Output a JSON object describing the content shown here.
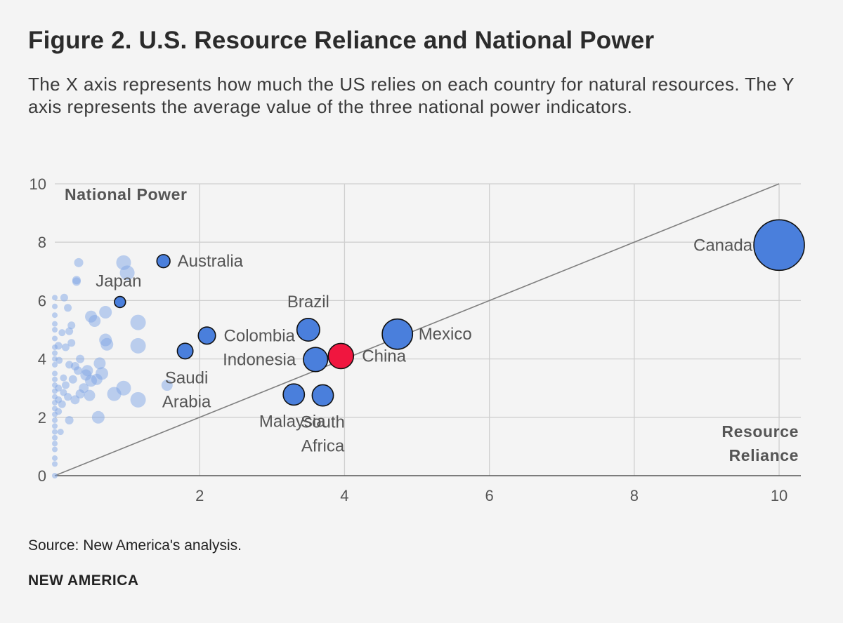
{
  "header": {
    "title": "Figure 2. U.S. Resource Reliance and National Power",
    "subtitle": "The X axis represents how much the US relies on each country for natural resources. The Y axis represents the average value of the three national power indicators."
  },
  "footer": {
    "source_label": "Source:",
    "source_text": " New America's analysis.",
    "brand": "NEW AMERICA"
  },
  "colors": {
    "background": "#f4f4f4",
    "highlight": "#4a7fdc",
    "china": "#f0163f",
    "background_bubbles": "#7fa6e6",
    "grid": "#cfcfcf",
    "diagonal": "#808080"
  },
  "chart_data": {
    "type": "scatter",
    "title": "Figure 2. U.S. Resource Reliance and National Power",
    "xlabel": "Resource Reliance",
    "ylabel": "National Power",
    "xlim": [
      0,
      10.3
    ],
    "ylim": [
      0,
      10
    ],
    "xticks": [
      2,
      4,
      6,
      8,
      10
    ],
    "yticks": [
      0,
      2,
      4,
      6,
      8,
      10
    ],
    "grid": true,
    "reference_line": {
      "from": [
        0,
        0
      ],
      "to": [
        10,
        10
      ]
    },
    "highlighted_points": [
      {
        "label": "Canada",
        "x": 10.0,
        "y": 7.9,
        "size": 10,
        "color": "blue"
      },
      {
        "label": "Mexico",
        "x": 4.73,
        "y": 4.85,
        "size": 6,
        "color": "blue"
      },
      {
        "label": "China",
        "x": 3.95,
        "y": 4.1,
        "size": 5,
        "color": "red"
      },
      {
        "label": "Brazil",
        "x": 3.5,
        "y": 5.0,
        "size": 4.5,
        "color": "blue"
      },
      {
        "label": "Indonesia",
        "x": 3.6,
        "y": 3.98,
        "size": 4.8,
        "color": "blue"
      },
      {
        "label": "Malaysia",
        "x": 3.3,
        "y": 2.78,
        "size": 4.2,
        "color": "blue"
      },
      {
        "label": "South Africa",
        "x": 3.7,
        "y": 2.75,
        "size": 4.2,
        "color": "blue"
      },
      {
        "label": "Colombia",
        "x": 2.1,
        "y": 4.8,
        "size": 3.4,
        "color": "blue"
      },
      {
        "label": "Saudi Arabia",
        "x": 1.8,
        "y": 4.27,
        "size": 3.1,
        "color": "blue"
      },
      {
        "label": "Australia",
        "x": 1.5,
        "y": 7.35,
        "size": 2.6,
        "color": "blue"
      },
      {
        "label": "Japan",
        "x": 0.9,
        "y": 5.95,
        "size": 2.2,
        "color": "blue"
      }
    ],
    "background_points": [
      {
        "x": 0.0,
        "y": 0.0,
        "size": 1
      },
      {
        "x": 0.0,
        "y": 0.4,
        "size": 1
      },
      {
        "x": 0.0,
        "y": 0.6,
        "size": 1
      },
      {
        "x": 0.0,
        "y": 0.9,
        "size": 1
      },
      {
        "x": 0.0,
        "y": 1.1,
        "size": 1
      },
      {
        "x": 0.0,
        "y": 1.3,
        "size": 1
      },
      {
        "x": 0.0,
        "y": 1.5,
        "size": 1
      },
      {
        "x": 0.0,
        "y": 1.7,
        "size": 1
      },
      {
        "x": 0.0,
        "y": 1.9,
        "size": 1
      },
      {
        "x": 0.0,
        "y": 2.1,
        "size": 1
      },
      {
        "x": 0.0,
        "y": 2.3,
        "size": 1
      },
      {
        "x": 0.0,
        "y": 2.5,
        "size": 1
      },
      {
        "x": 0.0,
        "y": 2.7,
        "size": 1
      },
      {
        "x": 0.0,
        "y": 2.9,
        "size": 1
      },
      {
        "x": 0.0,
        "y": 3.1,
        "size": 1
      },
      {
        "x": 0.0,
        "y": 3.3,
        "size": 1
      },
      {
        "x": 0.0,
        "y": 3.5,
        "size": 1
      },
      {
        "x": 0.0,
        "y": 3.8,
        "size": 1
      },
      {
        "x": 0.0,
        "y": 4.0,
        "size": 1
      },
      {
        "x": 0.0,
        "y": 4.2,
        "size": 1
      },
      {
        "x": 0.0,
        "y": 4.4,
        "size": 1
      },
      {
        "x": 0.0,
        "y": 4.7,
        "size": 1
      },
      {
        "x": 0.0,
        "y": 5.0,
        "size": 1
      },
      {
        "x": 0.0,
        "y": 5.2,
        "size": 1
      },
      {
        "x": 0.0,
        "y": 5.5,
        "size": 1
      },
      {
        "x": 0.0,
        "y": 5.8,
        "size": 1
      },
      {
        "x": 0.0,
        "y": 6.1,
        "size": 1
      },
      {
        "x": 0.05,
        "y": 2.2,
        "size": 1.2
      },
      {
        "x": 0.05,
        "y": 2.6,
        "size": 1.2
      },
      {
        "x": 0.05,
        "y": 3.0,
        "size": 1.2
      },
      {
        "x": 0.05,
        "y": 4.45,
        "size": 1.3
      },
      {
        "x": 0.06,
        "y": 3.95,
        "size": 1.2
      },
      {
        "x": 0.08,
        "y": 1.5,
        "size": 1.1
      },
      {
        "x": 0.1,
        "y": 2.45,
        "size": 1.3
      },
      {
        "x": 0.1,
        "y": 4.9,
        "size": 1.2
      },
      {
        "x": 0.12,
        "y": 2.85,
        "size": 1.2
      },
      {
        "x": 0.12,
        "y": 3.35,
        "size": 1.2
      },
      {
        "x": 0.13,
        "y": 6.1,
        "size": 1.3
      },
      {
        "x": 0.15,
        "y": 4.4,
        "size": 1.3
      },
      {
        "x": 0.15,
        "y": 3.1,
        "size": 1.3
      },
      {
        "x": 0.18,
        "y": 5.75,
        "size": 1.3
      },
      {
        "x": 0.18,
        "y": 2.7,
        "size": 1.3
      },
      {
        "x": 0.2,
        "y": 1.9,
        "size": 1.4
      },
      {
        "x": 0.2,
        "y": 3.8,
        "size": 1.3
      },
      {
        "x": 0.2,
        "y": 4.95,
        "size": 1.3
      },
      {
        "x": 0.23,
        "y": 5.15,
        "size": 1.3
      },
      {
        "x": 0.23,
        "y": 4.55,
        "size": 1.3
      },
      {
        "x": 0.25,
        "y": 3.3,
        "size": 1.4
      },
      {
        "x": 0.28,
        "y": 2.6,
        "size": 1.5
      },
      {
        "x": 0.28,
        "y": 3.75,
        "size": 1.4
      },
      {
        "x": 0.3,
        "y": 6.7,
        "size": 1.4
      },
      {
        "x": 0.3,
        "y": 6.65,
        "size": 1.4
      },
      {
        "x": 0.32,
        "y": 3.6,
        "size": 1.4
      },
      {
        "x": 0.33,
        "y": 7.3,
        "size": 1.5
      },
      {
        "x": 0.35,
        "y": 2.8,
        "size": 1.5
      },
      {
        "x": 0.35,
        "y": 4.0,
        "size": 1.4
      },
      {
        "x": 0.4,
        "y": 3.0,
        "size": 1.6
      },
      {
        "x": 0.43,
        "y": 3.45,
        "size": 1.8
      },
      {
        "x": 0.45,
        "y": 3.6,
        "size": 1.8
      },
      {
        "x": 0.48,
        "y": 2.75,
        "size": 1.8
      },
      {
        "x": 0.5,
        "y": 3.25,
        "size": 1.9
      },
      {
        "x": 0.5,
        "y": 5.45,
        "size": 1.9
      },
      {
        "x": 0.55,
        "y": 5.3,
        "size": 1.9
      },
      {
        "x": 0.58,
        "y": 3.3,
        "size": 1.8
      },
      {
        "x": 0.6,
        "y": 2.0,
        "size": 2.0
      },
      {
        "x": 0.62,
        "y": 3.85,
        "size": 1.9
      },
      {
        "x": 0.65,
        "y": 3.5,
        "size": 2.0
      },
      {
        "x": 0.7,
        "y": 5.6,
        "size": 2.0
      },
      {
        "x": 0.7,
        "y": 4.65,
        "size": 2.0
      },
      {
        "x": 0.72,
        "y": 4.5,
        "size": 2.0
      },
      {
        "x": 0.82,
        "y": 2.8,
        "size": 2.2
      },
      {
        "x": 0.95,
        "y": 3.0,
        "size": 2.3
      },
      {
        "x": 0.95,
        "y": 7.3,
        "size": 2.3
      },
      {
        "x": 1.0,
        "y": 6.95,
        "size": 2.3
      },
      {
        "x": 1.15,
        "y": 5.25,
        "size": 2.4
      },
      {
        "x": 1.15,
        "y": 4.45,
        "size": 2.4
      },
      {
        "x": 1.15,
        "y": 2.6,
        "size": 2.4
      },
      {
        "x": 1.55,
        "y": 3.1,
        "size": 1.8
      }
    ]
  }
}
